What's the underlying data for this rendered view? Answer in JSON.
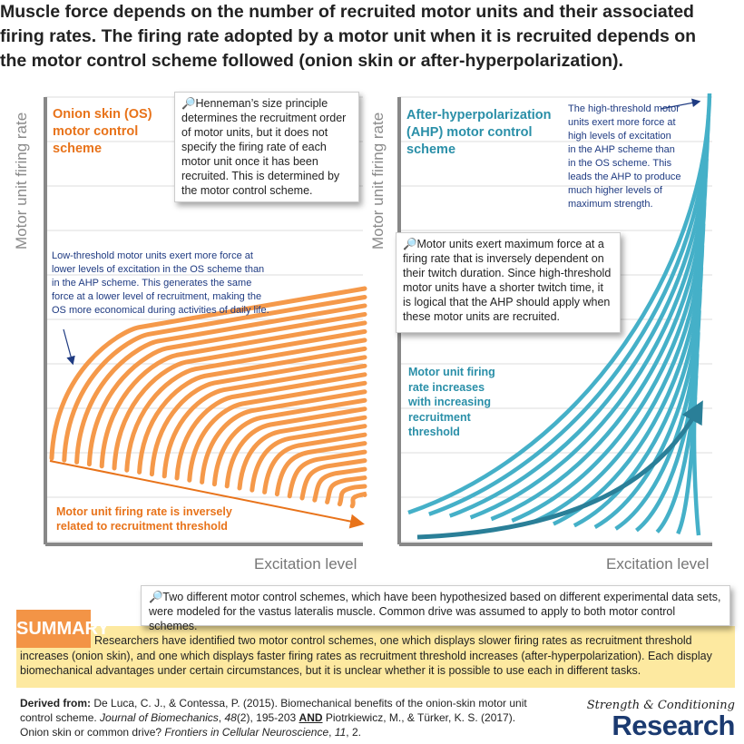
{
  "title": "Muscle force depends on the number of recruited motor units and their associated firing rates. The firing rate adopted by a motor unit when it is recruited depends on the motor control scheme followed (onion skin or after-hyperpolarization).",
  "colors": {
    "os_orange": "#f5994a",
    "os_title": "#e8731a",
    "ahp_teal": "#45b0c8",
    "ahp_title": "#2a8fa8",
    "note_blue": "#1f3b82",
    "summary_orange": "#f39446",
    "summary_yellow": "#fde9a0"
  },
  "left_panel": {
    "ylabel": "Motor unit firing rate",
    "xlabel": "Excitation level",
    "title": "Onion skin (OS) motor control scheme",
    "callout": "Henneman’s size principle determines the recruitment order of motor units, but it does not specify the firing rate of each motor unit once it has been recruited. This is determined by the motor control scheme.",
    "note": "Low-threshold motor units exert more force at lower levels of excitation in the OS scheme than in the AHP scheme. This generates the same force at a lower level of recruitment, making the OS more economical during activities of daily life.",
    "arrow_label": "Motor unit firing rate is inversely related to recruitment threshold"
  },
  "right_panel": {
    "ylabel": "Motor unit firing rate",
    "xlabel": "Excitation level",
    "title": "After-hyperpolarization (AHP) motor control scheme",
    "note": "The high-threshold motor units exert more force at high levels of excitation in the AHP scheme than in the OS scheme. This leads the AHP to produce much higher levels of maximum strength.",
    "callout": "Motor units exert maximum force at a firing rate that is inversely dependent on their twitch duration. Since high-threshold motor units have a shorter twitch time, it is logical that the AHP should apply when these motor units are recruited.",
    "arrow_label": "Motor unit firing rate increases with increasing recruitment threshold"
  },
  "bottom_callout": "Two different motor control schemes, which have been hypothesized based on different experimental data sets, were modeled for the vastus lateralis muscle. Common drive was assumed to apply to both motor control schemes.",
  "summary": {
    "label": "SUMMARY",
    "text": "Researchers have identified two motor control schemes, one which displays slower firing rates as recruitment threshold increases (onion skin), and one which displays faster firing rates as recruitment threshold increases (after-hyperpolarization). Each display biomechanical advantages under certain circumstances, but it is unclear whether it is possible to use each in different tasks."
  },
  "citation": {
    "lead": "Derived from:",
    "part1": " De Luca, C. J., & Contessa, P. (2015). Biomechanical benefits of the onion-skin motor unit control scheme. ",
    "journal1": "Journal of Biomechanics",
    "vol1": "48",
    "part2": "(2), 195-203 ",
    "and": "AND",
    "part3": " Piotrkiewicz, M., & Türker, K. S. (2017). Onion skin or common drive? ",
    "journal2": "Frontiers in Cellular Neuroscience",
    "vol2": "11",
    "part4": ", 2."
  },
  "logo": {
    "line1": "Strength & Conditioning",
    "line2": "Research"
  },
  "icons": {
    "callout": "magnifier-icon"
  }
}
